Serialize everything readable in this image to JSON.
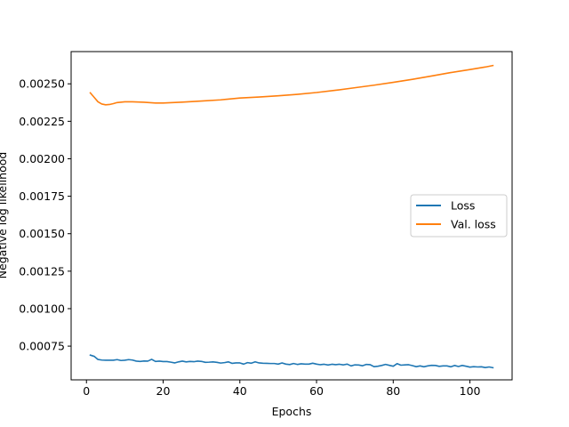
{
  "chart_data": {
    "type": "line",
    "xlabel": "Epochs",
    "ylabel": "Negative log likelihood",
    "xlim": [
      -4,
      111
    ],
    "ylim": [
      0.000525,
      0.002715
    ],
    "xticks": [
      0,
      20,
      40,
      60,
      80,
      100
    ],
    "xtick_labels": [
      "0",
      "20",
      "40",
      "60",
      "80",
      "100"
    ],
    "yticks": [
      0.00075,
      0.001,
      0.00125,
      0.0015,
      0.00175,
      0.002,
      0.00225,
      0.0025
    ],
    "ytick_labels": [
      "0.00075",
      "0.00100",
      "0.00125",
      "0.00150",
      "0.00175",
      "0.00200",
      "0.00225",
      "0.00250"
    ],
    "grid": false,
    "legend_position": "center-right",
    "series": [
      {
        "name": "Loss",
        "color": "#1f77b4",
        "x": [
          1,
          2,
          3,
          4,
          5,
          6,
          7,
          8,
          9,
          10,
          11,
          12,
          13,
          14,
          15,
          16,
          17,
          18,
          19,
          20,
          21,
          22,
          23,
          24,
          25,
          26,
          27,
          28,
          29,
          30,
          31,
          32,
          33,
          34,
          35,
          36,
          37,
          38,
          39,
          40,
          41,
          42,
          43,
          44,
          45,
          46,
          47,
          48,
          49,
          50,
          51,
          52,
          53,
          54,
          55,
          56,
          57,
          58,
          59,
          60,
          61,
          62,
          63,
          64,
          65,
          66,
          67,
          68,
          69,
          70,
          71,
          72,
          73,
          74,
          75,
          76,
          77,
          78,
          79,
          80,
          81,
          82,
          83,
          84,
          85,
          86,
          87,
          88,
          89,
          90,
          91,
          92,
          93,
          94,
          95,
          96,
          97,
          98,
          99,
          100,
          101,
          102,
          103,
          104,
          105,
          106
        ],
        "y": [
          0.00069,
          0.000682,
          0.000661,
          0.000657,
          0.000656,
          0.000656,
          0.000656,
          0.00066,
          0.000654,
          0.000656,
          0.00066,
          0.000657,
          0.00065,
          0.000648,
          0.000651,
          0.00065,
          0.000662,
          0.000648,
          0.00065,
          0.000647,
          0.000647,
          0.000643,
          0.000638,
          0.000645,
          0.00065,
          0.000645,
          0.000648,
          0.000646,
          0.00065,
          0.000648,
          0.000642,
          0.000643,
          0.000645,
          0.000642,
          0.000637,
          0.00064,
          0.000645,
          0.000635,
          0.000638,
          0.000638,
          0.00063,
          0.00064,
          0.000636,
          0.000645,
          0.000638,
          0.000636,
          0.000635,
          0.000634,
          0.000634,
          0.00063,
          0.000638,
          0.00063,
          0.000627,
          0.000634,
          0.000628,
          0.000632,
          0.00063,
          0.00063,
          0.000636,
          0.00063,
          0.000626,
          0.000629,
          0.000624,
          0.000629,
          0.000626,
          0.000629,
          0.000625,
          0.00063,
          0.000618,
          0.000625,
          0.000624,
          0.000619,
          0.000628,
          0.000626,
          0.000613,
          0.000616,
          0.000621,
          0.000628,
          0.000622,
          0.000616,
          0.000633,
          0.000623,
          0.000625,
          0.000626,
          0.00062,
          0.000613,
          0.000618,
          0.000612,
          0.000618,
          0.000622,
          0.000621,
          0.000615,
          0.000618,
          0.000618,
          0.000612,
          0.000621,
          0.000614,
          0.000621,
          0.000616,
          0.00061,
          0.000613,
          0.000611,
          0.000612,
          0.000607,
          0.000611,
          0.000606
        ]
      },
      {
        "name": "Val. loss",
        "color": "#ff7f0e",
        "x": [
          1,
          2,
          3,
          4,
          5,
          6,
          7,
          8,
          10,
          12,
          15,
          18,
          20,
          25,
          30,
          35,
          40,
          45,
          50,
          55,
          60,
          65,
          70,
          75,
          80,
          85,
          90,
          95,
          100,
          104,
          106
        ],
        "y": [
          0.00244,
          0.00241,
          0.00238,
          0.002365,
          0.00236,
          0.002362,
          0.002368,
          0.002375,
          0.00238,
          0.00238,
          0.002377,
          0.002372,
          0.002372,
          0.002378,
          0.002385,
          0.002393,
          0.002405,
          0.002412,
          0.00242,
          0.00243,
          0.002442,
          0.002457,
          0.002474,
          0.002491,
          0.00251,
          0.00253,
          0.002552,
          0.002575,
          0.002595,
          0.002612,
          0.002622
        ]
      }
    ]
  }
}
